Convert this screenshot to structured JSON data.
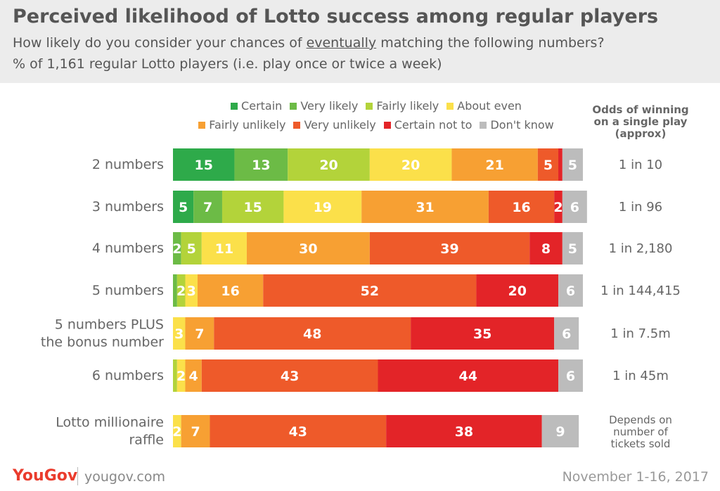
{
  "header": {
    "title": "Perceived likelihood of Lotto success among regular players",
    "subtitle_pre": "How likely do you consider your chances of ",
    "subtitle_emphasis": "eventually",
    "subtitle_post": " matching the following numbers?",
    "subtitle2": "% of 1,161 regular Lotto players (i.e. play once or twice a week)"
  },
  "odds_header": [
    "Odds of winning",
    "on a single play",
    "(approx)"
  ],
  "footer": {
    "logo": "YouGov",
    "url": "yougov.com",
    "date": "November 1-16, 2017"
  },
  "chart_data": {
    "type": "bar",
    "orientation": "horizontal",
    "stacked": true,
    "stack_total": 100,
    "legend_placement": "top",
    "categories": [
      [
        "2 numbers"
      ],
      [
        "3 numbers"
      ],
      [
        "4 numbers"
      ],
      [
        "5 numbers"
      ],
      [
        "5 numbers PLUS",
        "the bonus number"
      ],
      [
        "6 numbers"
      ],
      [
        "Lotto millionaire",
        "raffle"
      ]
    ],
    "odds": [
      [
        "1 in 10"
      ],
      [
        "1 in 96"
      ],
      [
        "1 in 2,180"
      ],
      [
        "1 in 144,415"
      ],
      [
        "1 in 7.5m"
      ],
      [
        "1 in 45m"
      ],
      [
        "Depends on",
        "number of",
        "tickets sold"
      ]
    ],
    "series": [
      {
        "name": "Certain",
        "color": "#2eaa4a",
        "values": [
          15,
          5,
          0,
          0,
          0,
          0,
          0
        ],
        "labels": [
          "15",
          "5",
          "",
          "",
          "",
          "",
          ""
        ]
      },
      {
        "name": "Very likely",
        "color": "#6cbb46",
        "values": [
          13,
          7,
          2,
          1,
          0,
          0,
          0
        ],
        "labels": [
          "13",
          "7",
          "2",
          "",
          "",
          "",
          ""
        ]
      },
      {
        "name": "Fairly likely",
        "color": "#b3d33a",
        "values": [
          20,
          15,
          5,
          2,
          0,
          1,
          0
        ],
        "labels": [
          "20",
          "15",
          "5",
          "2",
          "",
          "",
          ""
        ]
      },
      {
        "name": "About even",
        "color": "#fbe04a",
        "values": [
          20,
          19,
          11,
          3,
          3,
          2,
          2
        ],
        "labels": [
          "20",
          "19",
          "11",
          "3",
          "3",
          "2",
          "2"
        ]
      },
      {
        "name": "Fairly unlikely",
        "color": "#f7a033",
        "values": [
          21,
          31,
          30,
          16,
          7,
          4,
          7
        ],
        "labels": [
          "21",
          "31",
          "30",
          "16",
          "7",
          "4",
          "7"
        ]
      },
      {
        "name": "Very unlikely",
        "color": "#ee5a2a",
        "values": [
          5,
          16,
          39,
          52,
          48,
          43,
          43
        ],
        "labels": [
          "5",
          "16",
          "39",
          "52",
          "48",
          "43",
          "43"
        ]
      },
      {
        "name": "Certain not to",
        "color": "#e32428",
        "values": [
          1,
          2,
          8,
          20,
          35,
          44,
          38
        ],
        "labels": [
          "",
          "2",
          "8",
          "20",
          "35",
          "44",
          "38"
        ]
      },
      {
        "name": "Don't know",
        "color": "#bcbcbc",
        "values": [
          5,
          6,
          5,
          6,
          6,
          6,
          9
        ],
        "labels": [
          "5",
          "6",
          "5",
          "6",
          "6",
          "6",
          "9"
        ]
      }
    ]
  }
}
